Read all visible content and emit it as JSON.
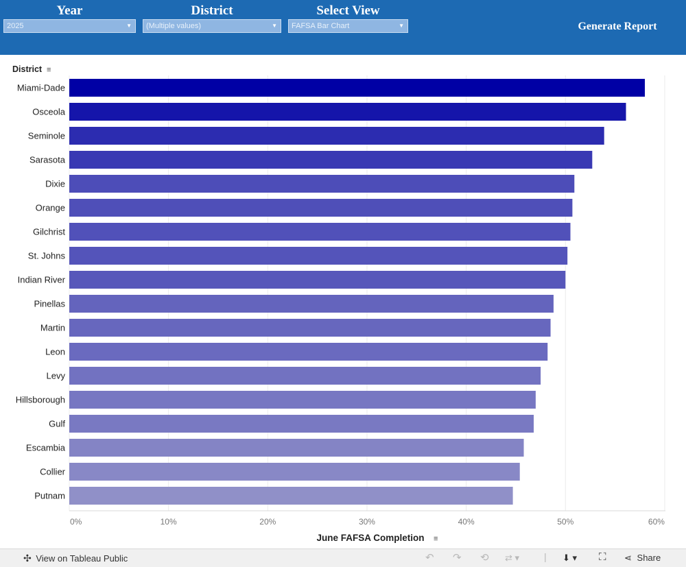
{
  "filters": {
    "year": {
      "title": "Year",
      "value": "2025"
    },
    "district": {
      "title": "District",
      "value": "(Multiple values)"
    },
    "view": {
      "title": "Select  View",
      "value": "FAFSA Bar Chart"
    }
  },
  "generate_report_label": "Generate Report",
  "footer": {
    "view_label": "View on Tableau Public",
    "share_label": "Share"
  },
  "colors": {
    "header": "#1d6ab3",
    "bar_top": "#0000a5",
    "bar_bottom": "#9090c8"
  },
  "chart_data": {
    "type": "bar",
    "orientation": "horizontal",
    "ylabel": "District",
    "xlabel": "June FAFSA Completion",
    "categories": [
      "Miami-Dade",
      "Osceola",
      "Seminole",
      "Sarasota",
      "Dixie",
      "Orange",
      "Gilchrist",
      "St. Johns",
      "Indian River",
      "Pinellas",
      "Martin",
      "Leon",
      "Levy",
      "Hillsborough",
      "Gulf",
      "Escambia",
      "Collier",
      "Putnam"
    ],
    "values": [
      58.0,
      56.1,
      53.9,
      52.7,
      50.9,
      50.7,
      50.5,
      50.2,
      50.0,
      48.8,
      48.5,
      48.2,
      47.5,
      47.0,
      46.8,
      45.8,
      45.4,
      44.7
    ],
    "xlim": [
      0,
      60
    ],
    "xticks": [
      "0%",
      "10%",
      "20%",
      "30%",
      "40%",
      "50%",
      "60%"
    ],
    "grid": true,
    "legend": "none"
  }
}
